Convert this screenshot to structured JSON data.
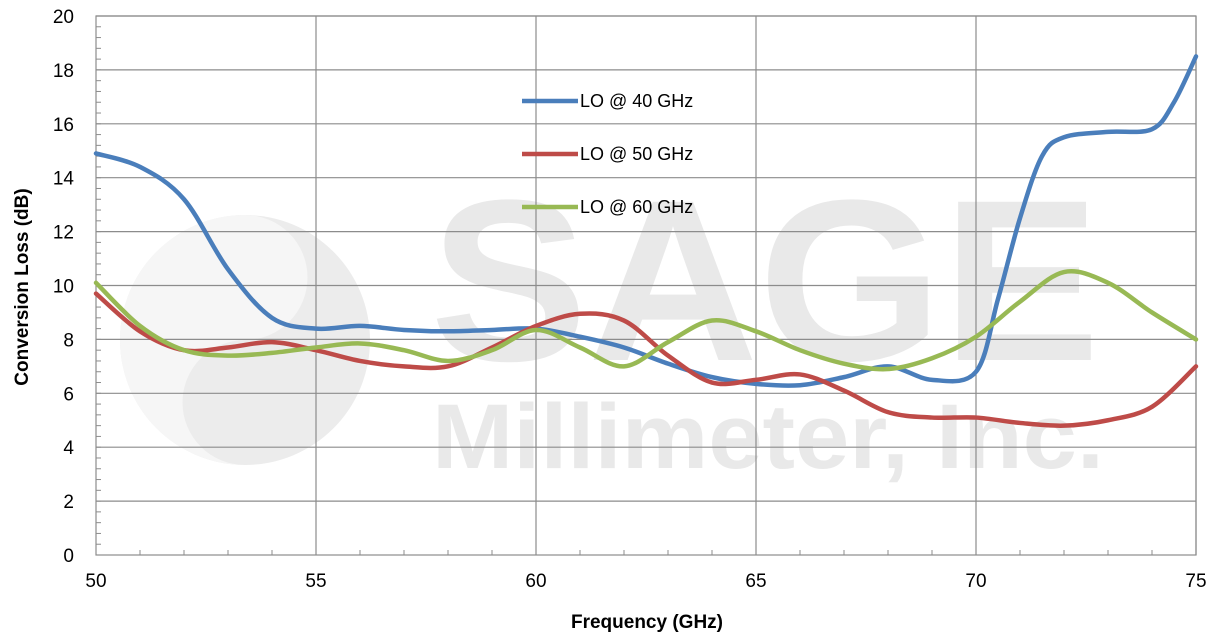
{
  "chart_data": {
    "type": "line",
    "title": "",
    "xlabel": "Frequency (GHz)",
    "ylabel": "Conversion Loss (dB)",
    "xlim": [
      50,
      75
    ],
    "ylim": [
      0,
      20
    ],
    "xticks": [
      50,
      55,
      60,
      65,
      70,
      75
    ],
    "yticks": [
      0,
      2,
      4,
      6,
      8,
      10,
      12,
      14,
      16,
      18,
      20
    ],
    "grid": true,
    "legend_position": "upper-center",
    "watermark": {
      "line1": "SAGE",
      "line2": "Millimeter, Inc."
    },
    "series": [
      {
        "name": "LO @ 40 GHz",
        "color": "#4a7ebb",
        "points": [
          [
            50,
            14.9
          ],
          [
            51,
            14.4
          ],
          [
            52,
            13.2
          ],
          [
            53,
            10.6
          ],
          [
            54,
            8.8
          ],
          [
            55,
            8.4
          ],
          [
            56,
            8.5
          ],
          [
            57,
            8.35
          ],
          [
            58,
            8.3
          ],
          [
            59,
            8.35
          ],
          [
            60,
            8.4
          ],
          [
            61,
            8.1
          ],
          [
            62,
            7.7
          ],
          [
            63,
            7.1
          ],
          [
            64,
            6.6
          ],
          [
            65,
            6.35
          ],
          [
            66,
            6.3
          ],
          [
            67,
            6.6
          ],
          [
            68,
            7.0
          ],
          [
            69,
            6.5
          ],
          [
            70,
            6.8
          ],
          [
            70.5,
            9.5
          ],
          [
            71,
            12.5
          ],
          [
            71.5,
            14.8
          ],
          [
            72,
            15.5
          ],
          [
            73,
            15.7
          ],
          [
            74,
            15.8
          ],
          [
            74.5,
            16.8
          ],
          [
            75,
            18.5
          ]
        ]
      },
      {
        "name": "LO @ 50 GHz",
        "color": "#be4b48",
        "points": [
          [
            50,
            9.7
          ],
          [
            51,
            8.3
          ],
          [
            52,
            7.6
          ],
          [
            53,
            7.7
          ],
          [
            54,
            7.9
          ],
          [
            55,
            7.6
          ],
          [
            56,
            7.2
          ],
          [
            57,
            7.0
          ],
          [
            58,
            7.0
          ],
          [
            59,
            7.7
          ],
          [
            60,
            8.5
          ],
          [
            61,
            8.95
          ],
          [
            62,
            8.7
          ],
          [
            63,
            7.4
          ],
          [
            64,
            6.4
          ],
          [
            65,
            6.5
          ],
          [
            66,
            6.7
          ],
          [
            67,
            6.1
          ],
          [
            68,
            5.3
          ],
          [
            69,
            5.1
          ],
          [
            70,
            5.1
          ],
          [
            71,
            4.9
          ],
          [
            72,
            4.8
          ],
          [
            73,
            5.0
          ],
          [
            74,
            5.5
          ],
          [
            75,
            7.0
          ]
        ]
      },
      {
        "name": "LO @ 60 GHz",
        "color": "#98b954",
        "points": [
          [
            50,
            10.1
          ],
          [
            51,
            8.5
          ],
          [
            52,
            7.6
          ],
          [
            53,
            7.4
          ],
          [
            54,
            7.5
          ],
          [
            55,
            7.7
          ],
          [
            56,
            7.85
          ],
          [
            57,
            7.6
          ],
          [
            58,
            7.2
          ],
          [
            59,
            7.6
          ],
          [
            60,
            8.35
          ],
          [
            61,
            7.7
          ],
          [
            62,
            7.0
          ],
          [
            63,
            7.9
          ],
          [
            64,
            8.7
          ],
          [
            65,
            8.3
          ],
          [
            66,
            7.6
          ],
          [
            67,
            7.1
          ],
          [
            68,
            6.9
          ],
          [
            69,
            7.3
          ],
          [
            70,
            8.1
          ],
          [
            71,
            9.4
          ],
          [
            72,
            10.5
          ],
          [
            73,
            10.1
          ],
          [
            74,
            9.0
          ],
          [
            75,
            8.0
          ]
        ]
      }
    ]
  }
}
